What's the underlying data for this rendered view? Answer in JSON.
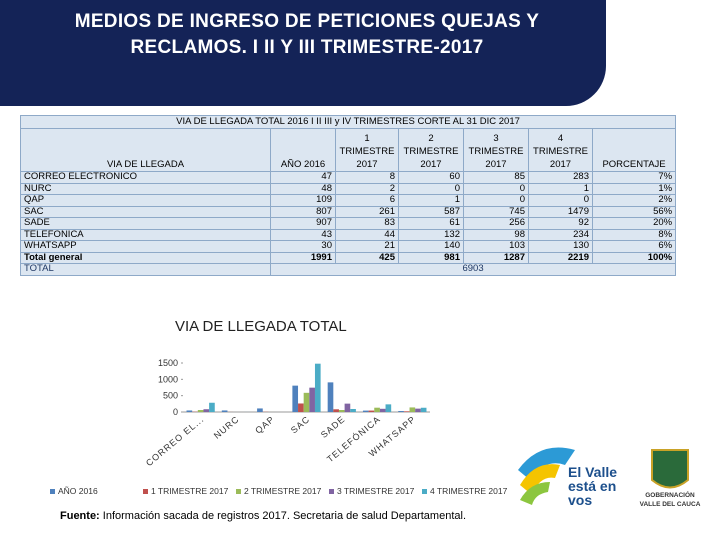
{
  "header": {
    "title": "MEDIOS DE INGRESO DE PETICIONES QUEJAS Y RECLAMOS. I II Y III TRIMESTRE-2017"
  },
  "table": {
    "title": "VIA DE LLEGADA TOTAL 2016 I II III y IV TRIMESTRES CORTE AL 31 DIC 2017",
    "columns": [
      "VIA DE LLEGADA",
      "AÑO 2016",
      "1 TRIMESTRE 2017",
      "2 TRIMESTRE 2017",
      "3 TRIMESTRE 2017",
      "4 TRIMESTRE 2017",
      "PORCENTAJE"
    ],
    "rows": [
      [
        "CORREO ELECTRONICO",
        "47",
        "8",
        "60",
        "85",
        "283",
        "7%"
      ],
      [
        "NURC",
        "48",
        "2",
        "0",
        "0",
        "1",
        "1%"
      ],
      [
        "QAP",
        "109",
        "6",
        "1",
        "0",
        "0",
        "2%"
      ],
      [
        "SAC",
        "807",
        "261",
        "587",
        "745",
        "1479",
        "56%"
      ],
      [
        "SADE",
        "907",
        "83",
        "61",
        "256",
        "92",
        "20%"
      ],
      [
        "TELEFÓNICA",
        "43",
        "44",
        "132",
        "98",
        "234",
        "8%"
      ],
      [
        "WHATSAPP",
        "30",
        "21",
        "140",
        "103",
        "130",
        "6%"
      ],
      [
        "Total general",
        "1991",
        "425",
        "981",
        "1287",
        "2219",
        "100%"
      ]
    ],
    "total": {
      "label": "TOTAL",
      "value": "6903"
    }
  },
  "chart_data": {
    "type": "bar",
    "title": "VIA DE LLEGADA TOTAL",
    "categories": [
      "CORREO EL...",
      "NURC",
      "QAP",
      "SAC",
      "SADE",
      "TELEFÓNICA",
      "WHATSAPP"
    ],
    "series": [
      {
        "name": "AÑO 2016",
        "color": "#4f81bd",
        "values": [
          47,
          48,
          109,
          807,
          907,
          43,
          30
        ]
      },
      {
        "name": "1 TRIMESTRE 2017",
        "color": "#c0504d",
        "values": [
          8,
          2,
          6,
          261,
          83,
          44,
          21
        ]
      },
      {
        "name": "2 TRIMESTRE 2017",
        "color": "#9bbb59",
        "values": [
          60,
          0,
          1,
          587,
          61,
          132,
          140
        ]
      },
      {
        "name": "3 TRIMESTRE 2017",
        "color": "#8064a2",
        "values": [
          85,
          0,
          0,
          745,
          256,
          98,
          103
        ]
      },
      {
        "name": "4 TRIMESTRE 2017",
        "color": "#4bacc6",
        "values": [
          283,
          1,
          0,
          1479,
          92,
          234,
          130
        ]
      }
    ],
    "ylim": [
      0,
      1500
    ],
    "yticks": [
      0,
      500,
      1000,
      1500
    ],
    "legend": "bottom"
  },
  "footnote": {
    "label": "Fuente:",
    "text": "Información sacada de registros 2017. Secretaria de salud Departamental."
  },
  "logo": {
    "slogan": [
      "El Valle",
      "está en",
      "vos"
    ],
    "org": [
      "GOBERNACIÓN",
      "VALLE DEL CAUCA"
    ]
  }
}
